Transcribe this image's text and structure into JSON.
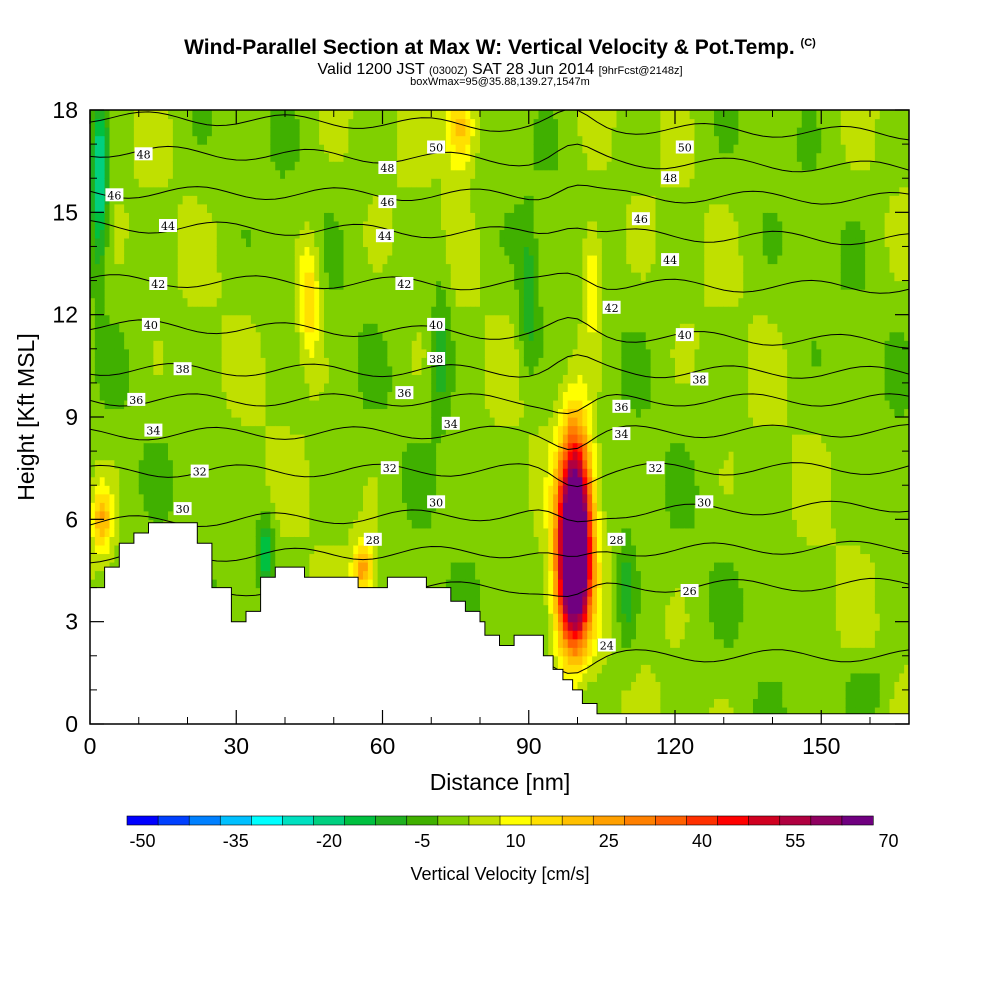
{
  "title": {
    "main": "Wind-Parallel Section at Max W: Vertical Velocity & Pot.Temp.",
    "copyright": "(C)",
    "valid_prefix": "Valid 1200 JST",
    "valid_utc": "(0300Z)",
    "valid_date": "SAT 28 Jun 2014",
    "forecast": "[9hrFcst@2148z]",
    "subtitle": "boxWmax=95@35.88,139.27,1547m"
  },
  "chart_data": {
    "type": "heatmap",
    "xlabel": "Distance [nm]",
    "ylabel": "Height [Kft MSL]",
    "xlim": [
      0,
      168
    ],
    "ylim": [
      0,
      18
    ],
    "x_ticks": [
      0,
      30,
      60,
      90,
      120,
      150
    ],
    "y_ticks": [
      0,
      3,
      6,
      9,
      12,
      15,
      18
    ],
    "colorbar": {
      "label": "Vertical Velocity [cm/s]",
      "tick_labels": [
        "-50",
        "-35",
        "-20",
        "-5",
        "10",
        "25",
        "40",
        "55",
        "70"
      ],
      "colors": [
        "#0000ff",
        "#0040ff",
        "#0080ff",
        "#00c0ff",
        "#00ffff",
        "#00e0c0",
        "#00d080",
        "#00c040",
        "#20b020",
        "#40b000",
        "#80d000",
        "#c0e000",
        "#ffff00",
        "#ffe000",
        "#ffc000",
        "#ffa000",
        "#ff8000",
        "#ff6000",
        "#ff3000",
        "#ff0000",
        "#d00020",
        "#b00040",
        "#900060",
        "#700080"
      ]
    },
    "terrain_kft": [
      [
        0,
        4.0
      ],
      [
        3,
        4.0
      ],
      [
        3,
        4.6
      ],
      [
        6,
        4.6
      ],
      [
        6,
        5.3
      ],
      [
        9,
        5.3
      ],
      [
        9,
        5.6
      ],
      [
        12,
        5.6
      ],
      [
        12,
        5.9
      ],
      [
        22,
        5.9
      ],
      [
        22,
        5.3
      ],
      [
        25,
        5.3
      ],
      [
        25,
        4.0
      ],
      [
        29,
        4.0
      ],
      [
        29,
        3.0
      ],
      [
        32,
        3.0
      ],
      [
        32,
        3.3
      ],
      [
        35,
        3.3
      ],
      [
        35,
        4.3
      ],
      [
        38,
        4.3
      ],
      [
        38,
        4.6
      ],
      [
        44,
        4.6
      ],
      [
        44,
        4.3
      ],
      [
        55,
        4.3
      ],
      [
        55,
        4.0
      ],
      [
        61,
        4.0
      ],
      [
        61,
        4.3
      ],
      [
        69,
        4.3
      ],
      [
        69,
        4.0
      ],
      [
        74,
        4.0
      ],
      [
        74,
        3.6
      ],
      [
        77,
        3.6
      ],
      [
        77,
        3.3
      ],
      [
        80,
        3.3
      ],
      [
        80,
        3.0
      ],
      [
        81,
        3.0
      ],
      [
        81,
        2.6
      ],
      [
        84,
        2.6
      ],
      [
        84,
        2.3
      ],
      [
        87,
        2.3
      ],
      [
        87,
        2.6
      ],
      [
        93,
        2.6
      ],
      [
        93,
        2.0
      ],
      [
        95,
        2.0
      ],
      [
        95,
        1.6
      ],
      [
        97,
        1.6
      ],
      [
        97,
        1.3
      ],
      [
        99,
        1.3
      ],
      [
        99,
        1.0
      ],
      [
        101,
        1.0
      ],
      [
        101,
        0.6
      ],
      [
        104,
        0.6
      ],
      [
        104,
        0.3
      ],
      [
        168,
        0.3
      ]
    ],
    "updrafts": [
      {
        "x": 99.5,
        "y": 6.0,
        "peak": 80,
        "sx": 3.2,
        "sy": 2.6
      },
      {
        "x": 99.0,
        "y": 4.0,
        "peak": 45,
        "sx": 3.5,
        "sy": 2.0
      },
      {
        "x": 76.0,
        "y": 17.5,
        "peak": 22,
        "sx": 3.0,
        "sy": 1.3
      },
      {
        "x": 45.0,
        "y": 12.5,
        "peak": 18,
        "sx": 2.2,
        "sy": 1.8
      },
      {
        "x": 56.0,
        "y": 4.6,
        "peak": 25,
        "sx": 2.0,
        "sy": 0.8
      },
      {
        "x": 2.5,
        "y": 6.0,
        "peak": 20,
        "sx": 2.0,
        "sy": 1.0
      },
      {
        "x": 103.0,
        "y": 13.0,
        "peak": 15,
        "sx": 2.2,
        "sy": 1.8
      }
    ],
    "downdrafts": [
      {
        "x": 2.0,
        "y": 16.0,
        "peak": -25,
        "sx": 1.6,
        "sy": 2.4
      },
      {
        "x": 72.0,
        "y": 11.0,
        "peak": -12,
        "sx": 2.0,
        "sy": 2.0
      },
      {
        "x": 36.0,
        "y": 5.0,
        "peak": -18,
        "sx": 1.6,
        "sy": 1.0
      },
      {
        "x": 90.0,
        "y": 12.5,
        "peak": -12,
        "sx": 2.0,
        "sy": 2.0
      },
      {
        "x": 110.0,
        "y": 4.0,
        "peak": -10,
        "sx": 2.0,
        "sy": 2.0
      },
      {
        "x": 160.0,
        "y": 1.0,
        "peak": -8,
        "sx": 4.0,
        "sy": 0.8
      }
    ],
    "isentropes": [
      {
        "label": "24",
        "y_left": 2.0,
        "y_right": 2.0
      },
      {
        "label": "26",
        "y_left": 3.9,
        "y_right": 4.1
      },
      {
        "label": "28",
        "y_left": 4.9,
        "y_right": 5.2
      },
      {
        "label": "30",
        "y_left": 5.9,
        "y_right": 6.4
      },
      {
        "label": "32",
        "y_left": 7.4,
        "y_right": 7.5
      },
      {
        "label": "34",
        "y_left": 8.5,
        "y_right": 8.6
      },
      {
        "label": "36",
        "y_left": 9.5,
        "y_right": 9.5
      },
      {
        "label": "38",
        "y_left": 10.4,
        "y_right": 10.3
      },
      {
        "label": "40",
        "y_left": 11.7,
        "y_right": 11.2
      },
      {
        "label": "42",
        "y_left": 13.0,
        "y_right": 12.8
      },
      {
        "label": "44",
        "y_left": 14.6,
        "y_right": 14.2
      },
      {
        "label": "46",
        "y_left": 15.6,
        "y_right": 15.4
      },
      {
        "label": "48",
        "y_left": 16.8,
        "y_right": 16.3
      },
      {
        "label": "50",
        "y_left": 17.8,
        "y_right": 17.3
      }
    ],
    "isentrope_labels": [
      {
        "text": "48",
        "x": 11,
        "y": 16.7
      },
      {
        "text": "46",
        "x": 5,
        "y": 15.5
      },
      {
        "text": "44",
        "x": 16,
        "y": 14.6
      },
      {
        "text": "42",
        "x": 14,
        "y": 12.9
      },
      {
        "text": "40",
        "x": 12.5,
        "y": 11.7
      },
      {
        "text": "38",
        "x": 19,
        "y": 10.4
      },
      {
        "text": "36",
        "x": 9.5,
        "y": 9.5
      },
      {
        "text": "34",
        "x": 13,
        "y": 8.6
      },
      {
        "text": "32",
        "x": 22.5,
        "y": 7.4
      },
      {
        "text": "30",
        "x": 19,
        "y": 6.3
      },
      {
        "text": "50",
        "x": 71,
        "y": 16.9
      },
      {
        "text": "48",
        "x": 61,
        "y": 16.3
      },
      {
        "text": "46",
        "x": 61,
        "y": 15.3
      },
      {
        "text": "44",
        "x": 60.5,
        "y": 14.3
      },
      {
        "text": "42",
        "x": 64.5,
        "y": 12.9
      },
      {
        "text": "40",
        "x": 71,
        "y": 11.7
      },
      {
        "text": "38",
        "x": 71,
        "y": 10.7
      },
      {
        "text": "36",
        "x": 64.5,
        "y": 9.7
      },
      {
        "text": "34",
        "x": 74,
        "y": 8.8
      },
      {
        "text": "32",
        "x": 61.5,
        "y": 7.5
      },
      {
        "text": "30",
        "x": 71,
        "y": 6.5
      },
      {
        "text": "28",
        "x": 58,
        "y": 5.4
      },
      {
        "text": "50",
        "x": 122,
        "y": 16.9
      },
      {
        "text": "48",
        "x": 119,
        "y": 16.0
      },
      {
        "text": "46",
        "x": 113,
        "y": 14.8
      },
      {
        "text": "44",
        "x": 119,
        "y": 13.6
      },
      {
        "text": "42",
        "x": 107,
        "y": 12.2
      },
      {
        "text": "40",
        "x": 122,
        "y": 11.4
      },
      {
        "text": "38",
        "x": 125,
        "y": 10.1
      },
      {
        "text": "36",
        "x": 109,
        "y": 9.3
      },
      {
        "text": "34",
        "x": 109,
        "y": 8.5
      },
      {
        "text": "32",
        "x": 116,
        "y": 7.5
      },
      {
        "text": "30",
        "x": 126,
        "y": 6.5
      },
      {
        "text": "28",
        "x": 108,
        "y": 5.4
      },
      {
        "text": "26",
        "x": 123,
        "y": 3.9
      },
      {
        "text": "24",
        "x": 106,
        "y": 2.3
      }
    ]
  }
}
